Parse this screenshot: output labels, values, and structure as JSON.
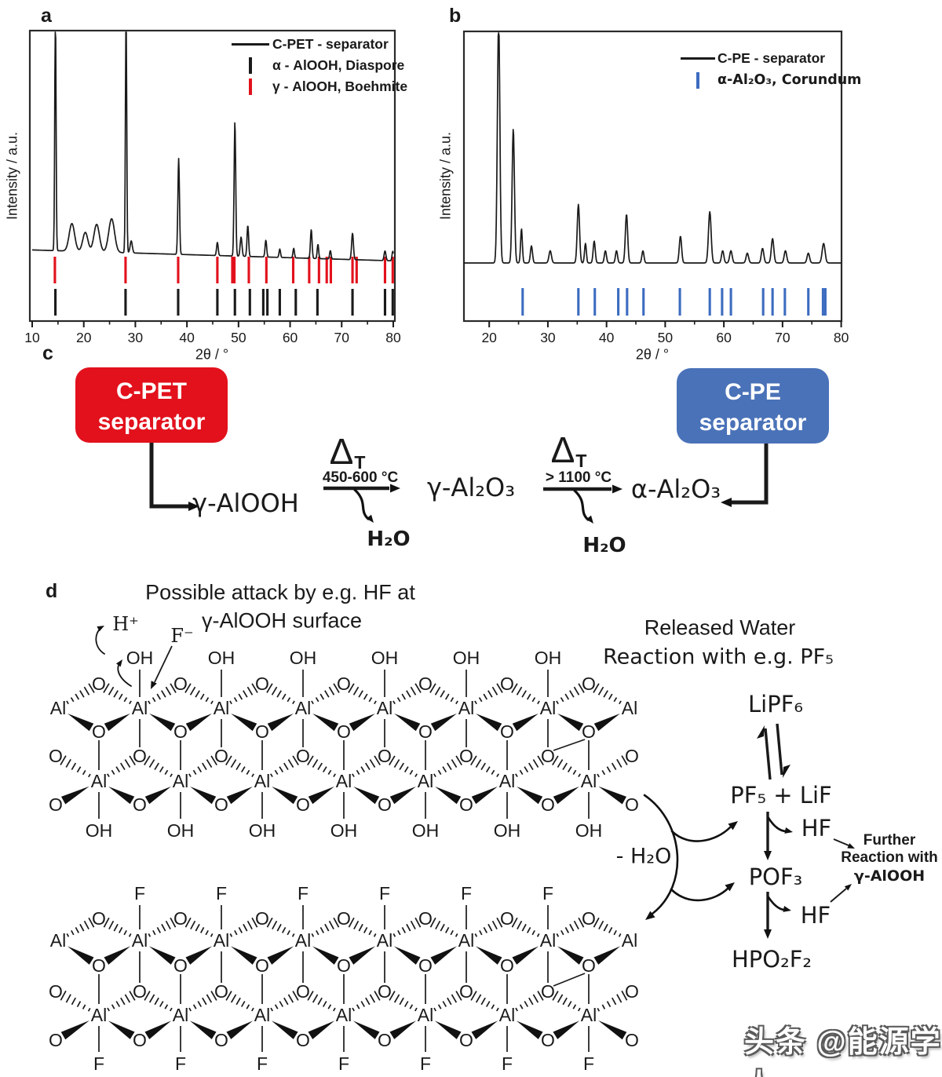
{
  "panels": {
    "a": "a",
    "b": "b",
    "c": "c",
    "d": "d"
  },
  "chart_data": [
    {
      "id": "a",
      "type": "line",
      "title": "",
      "xlabel": "2θ / °",
      "ylabel": "Intensity / a.u.",
      "xlim": [
        10,
        80
      ],
      "xticks": [
        10,
        20,
        30,
        40,
        50,
        60,
        70,
        80
      ],
      "grid": false,
      "legend_position": "top-right",
      "legend": [
        {
          "label": "C-PET - separator",
          "marker": "line",
          "color": "#1a1a1a"
        },
        {
          "label": "α - AlOOH, Diaspore",
          "marker": "tick",
          "color": "#1a1a1a"
        },
        {
          "label": "γ - AlOOH, Boehmite",
          "marker": "tick",
          "color": "#e2111c"
        }
      ],
      "series": [
        {
          "name": "C-PET - separator",
          "color": "#1a1a1a",
          "baseline": 0.075,
          "peaks_2theta_height_width": [
            [
              14.5,
              0.99,
              0.18
            ],
            [
              17.7,
              0.115,
              0.75
            ],
            [
              20.3,
              0.08,
              0.7
            ],
            [
              22.5,
              0.115,
              0.75
            ],
            [
              25.4,
              0.14,
              0.8
            ],
            [
              28.2,
              1.0,
              0.18
            ],
            [
              29.2,
              0.05,
              0.3
            ],
            [
              38.4,
              0.4,
              0.22
            ],
            [
              45.9,
              0.055,
              0.22
            ],
            [
              49.3,
              0.56,
              0.22
            ],
            [
              50.5,
              0.08,
              0.25
            ],
            [
              51.8,
              0.13,
              0.22
            ],
            [
              55.3,
              0.07,
              0.22
            ],
            [
              58.0,
              0.035,
              0.2
            ],
            [
              60.7,
              0.04,
              0.2
            ],
            [
              64.1,
              0.12,
              0.22
            ],
            [
              65.4,
              0.06,
              0.2
            ],
            [
              67.8,
              0.035,
              0.2
            ],
            [
              72.1,
              0.11,
              0.25
            ],
            [
              78.4,
              0.04,
              0.25
            ],
            [
              79.9,
              0.04,
              0.2
            ]
          ]
        }
      ],
      "reference_ticks": [
        {
          "name": "γ - AlOOH, Boehmite",
          "color": "#e2111c",
          "positions": [
            14.4,
            28.1,
            38.3,
            45.9,
            48.8,
            49.2,
            52.0,
            55.4,
            60.6,
            63.7,
            65.6,
            67.1,
            67.9,
            72.1,
            72.9,
            78.4,
            79.9
          ]
        },
        {
          "name": "α - AlOOH, Diaspore",
          "color": "#1a1a1a",
          "positions": [
            14.5,
            28.1,
            38.3,
            45.9,
            49.3,
            52.2,
            54.8,
            55.6,
            58.0,
            61.1,
            65.3,
            72.1,
            78.4,
            79.9
          ]
        }
      ]
    },
    {
      "id": "b",
      "type": "line",
      "title": "",
      "xlabel": "2θ / °",
      "ylabel": "Intensity / a.u.",
      "xlim": [
        15.5,
        80
      ],
      "xticks": [
        20,
        30,
        40,
        50,
        60,
        70,
        80
      ],
      "grid": false,
      "legend_position": "top-right",
      "legend": [
        {
          "label": "C-PE - separator",
          "marker": "line",
          "color": "#1a1a1a"
        },
        {
          "label": "α-Al₂O₃, Corundum",
          "marker": "tick",
          "color": "#3d6cc0"
        }
      ],
      "series": [
        {
          "name": "C-PE - separator",
          "color": "#1a1a1a",
          "baseline": 0.06,
          "peaks_2theta_height_width": [
            [
              21.6,
              1.0,
              0.3
            ],
            [
              24.1,
              0.55,
              0.28
            ],
            [
              25.5,
              0.14,
              0.22
            ],
            [
              27.2,
              0.07,
              0.25
            ],
            [
              30.4,
              0.05,
              0.3
            ],
            [
              35.2,
              0.24,
              0.28
            ],
            [
              36.4,
              0.08,
              0.22
            ],
            [
              37.9,
              0.09,
              0.25
            ],
            [
              39.8,
              0.05,
              0.25
            ],
            [
              41.7,
              0.05,
              0.25
            ],
            [
              43.4,
              0.2,
              0.28
            ],
            [
              46.2,
              0.05,
              0.25
            ],
            [
              52.6,
              0.11,
              0.28
            ],
            [
              57.6,
              0.21,
              0.32
            ],
            [
              59.8,
              0.05,
              0.28
            ],
            [
              61.2,
              0.05,
              0.3
            ],
            [
              64.0,
              0.04,
              0.3
            ],
            [
              66.6,
              0.06,
              0.3
            ],
            [
              68.3,
              0.1,
              0.3
            ],
            [
              70.5,
              0.05,
              0.3
            ],
            [
              74.4,
              0.04,
              0.3
            ],
            [
              77.0,
              0.08,
              0.35
            ]
          ]
        }
      ],
      "reference_ticks": [
        {
          "name": "α-Al₂O₃, Corundum",
          "color": "#3d6cc0",
          "positions": [
            25.7,
            35.2,
            38.0,
            42.0,
            43.5,
            46.3,
            52.5,
            57.6,
            59.7,
            61.2,
            66.7,
            68.3,
            70.4,
            74.4,
            76.9,
            77.3
          ]
        }
      ]
    }
  ],
  "panel_c": {
    "boxes": [
      {
        "id": "cpet",
        "lines": [
          "C-PET",
          "separator"
        ],
        "color": "#e2111c"
      },
      {
        "id": "cpe",
        "lines": [
          "C-PE",
          "separator"
        ],
        "color": "#4a72b8"
      }
    ],
    "species": {
      "alooh": "γ-AlOOH",
      "gal2o3": "γ-Al₂O₃",
      "aal2o3": "α-Al₂O₃"
    },
    "steps": [
      {
        "delta": "Δ",
        "delta_sub": "T",
        "condition": "450-600 °C",
        "byproduct": "H₂O"
      },
      {
        "delta": "Δ",
        "delta_sub": "T",
        "condition": "> 1100 °C",
        "byproduct": "H₂O"
      }
    ]
  },
  "panel_d": {
    "title": [
      "Possible attack by e.g. HF at",
      "γ-AlOOH surface"
    ],
    "attack": {
      "proton": "H⁺",
      "fluoride": "F⁻"
    },
    "atoms": {
      "al": "Al",
      "o": "O"
    },
    "structures": [
      {
        "id": "boehmite-surface",
        "surface_group": "OH",
        "bottom_group": "OH",
        "columns": 6
      },
      {
        "id": "fluorinated-surface",
        "surface_group": "F",
        "bottom_group": "F",
        "columns": 6
      }
    ],
    "release": {
      "title": [
        "Released Water",
        "Reaction with e.g. PF₅"
      ],
      "minus_h2o": "- H₂O"
    },
    "cascade": {
      "lipf6": "LiPF₆",
      "pf5_lif": "PF₅ + LiF",
      "hf1": "HF",
      "pof3": "POF₃",
      "hf2": "HF",
      "hpo2f2": "HPO₂F₂",
      "further": [
        "Further",
        "Reaction with",
        "γ-AlOOH"
      ]
    }
  },
  "watermark": "头条 @能源学人"
}
